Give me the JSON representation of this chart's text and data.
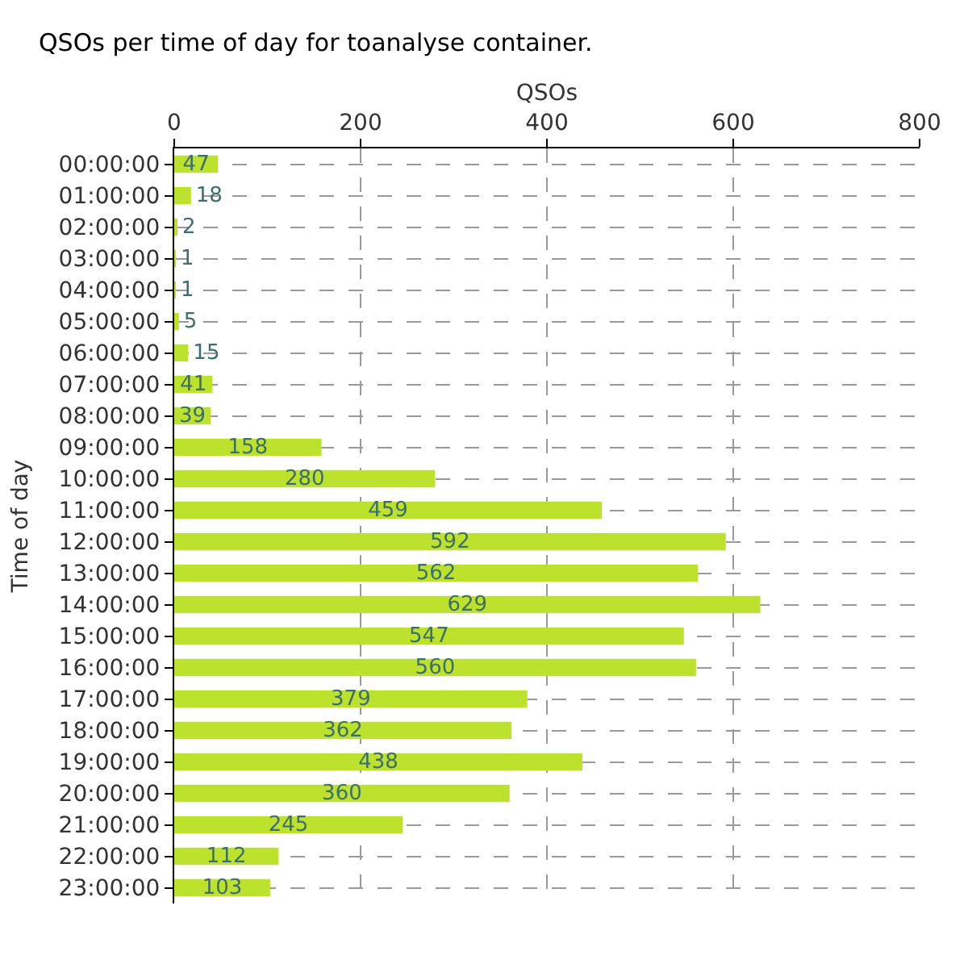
{
  "chart_data": {
    "type": "bar",
    "orientation": "horizontal",
    "title": "QSOs per time of day for toanalyse container.",
    "xlabel": "QSOs",
    "ylabel": "Time of day",
    "categories": [
      "00:00:00",
      "01:00:00",
      "02:00:00",
      "03:00:00",
      "04:00:00",
      "05:00:00",
      "06:00:00",
      "07:00:00",
      "08:00:00",
      "09:00:00",
      "10:00:00",
      "11:00:00",
      "12:00:00",
      "13:00:00",
      "14:00:00",
      "15:00:00",
      "16:00:00",
      "17:00:00",
      "18:00:00",
      "19:00:00",
      "20:00:00",
      "21:00:00",
      "22:00:00",
      "23:00:00"
    ],
    "values": [
      47,
      18,
      2,
      1,
      1,
      5,
      15,
      41,
      39,
      158,
      280,
      459,
      592,
      562,
      629,
      547,
      560,
      379,
      362,
      438,
      360,
      245,
      112,
      103
    ],
    "color": "#bde22d",
    "xlim": [
      0,
      800
    ],
    "xticks": [
      0,
      200,
      400,
      600,
      800
    ],
    "grid": true,
    "data_labels": true,
    "legend": false
  }
}
